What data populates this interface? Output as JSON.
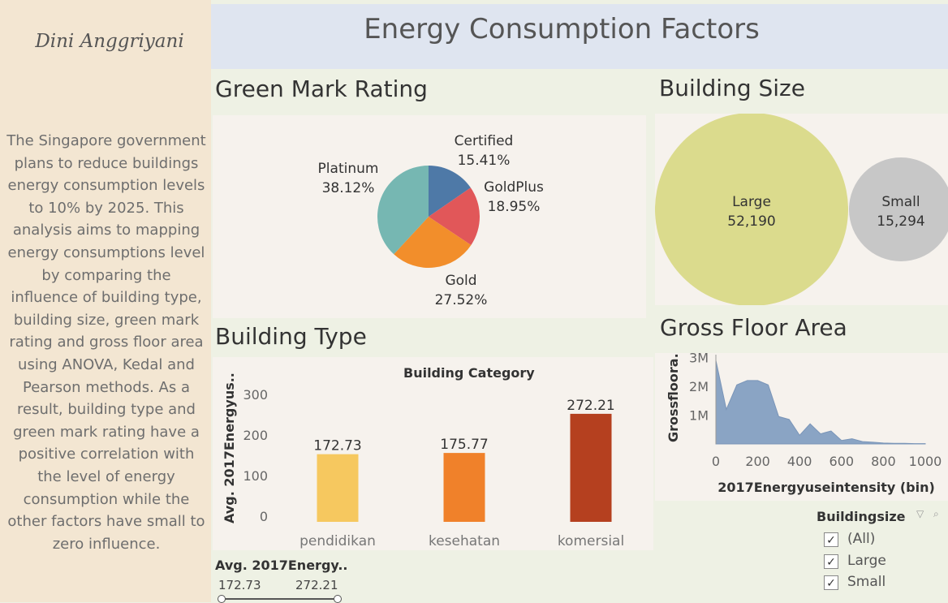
{
  "author": "Dini Anggriyani",
  "description": "The Singapore government plans to reduce buildings energy consumption levels  to 10% by 2025. This analysis aims to mapping energy consumptions level by comparing the influence of building type, building size, green mark rating and gross floor area using ANOVA, Kedal and Pearson methods. As a result, building type and green mark rating have a positive correlation with the level of energy consumption while the other factors have small to zero influence.",
  "dashboard_title": "Energy Consumption Factors",
  "sections": {
    "green_mark": "Green Mark Rating",
    "building_size": "Building Size",
    "building_type": "Building Type",
    "gross_floor_area": "Gross Floor Area"
  },
  "colors": {
    "Certified": "#4e79a7",
    "GoldPlus": "#e15759",
    "Gold": "#f28e2b",
    "Platinum": "#76b7b2",
    "Large": "#dbdb8d",
    "Small": "#c7c7c7",
    "pendidikan": "#f6c85f",
    "kesehatan": "#f0812a",
    "komersial": "#b5401f",
    "area": "#8aa4c4"
  },
  "chart_data": [
    {
      "type": "pie",
      "title": "Green Mark Rating",
      "slices": [
        {
          "label": "Certified",
          "value": 15.41,
          "value_label": "15.41%"
        },
        {
          "label": "GoldPlus",
          "value": 18.95,
          "value_label": "18.95%"
        },
        {
          "label": "Gold",
          "value": 27.52,
          "value_label": "27.52%"
        },
        {
          "label": "Platinum",
          "value": 38.12,
          "value_label": "38.12%"
        }
      ]
    },
    {
      "type": "bubble",
      "title": "Building Size",
      "items": [
        {
          "label": "Large",
          "value": 52190,
          "value_label": "52,190"
        },
        {
          "label": "Small",
          "value": 15294,
          "value_label": "15,294"
        }
      ]
    },
    {
      "type": "bar",
      "title": "Building Type",
      "header": "Building Category",
      "ylabel": "Avg. 2017Energyus..",
      "categories": [
        "pendidikan",
        "kesehatan",
        "komersial"
      ],
      "values": [
        172.73,
        175.77,
        272.21
      ],
      "value_labels": [
        "172.73",
        "175.77",
        "272.21"
      ],
      "yticks": [
        "0",
        "100",
        "200",
        "300"
      ],
      "ylim": [
        0,
        300
      ]
    },
    {
      "type": "area",
      "title": "Gross Floor Area",
      "xlabel": "2017Energyuseintensity (bin)",
      "ylabel": "Grossfloora..",
      "x": [
        0,
        50,
        100,
        150,
        200,
        250,
        300,
        350,
        400,
        450,
        500,
        550,
        600,
        650,
        700,
        750,
        800,
        850,
        900,
        950,
        1000
      ],
      "y": [
        2900000,
        1200000,
        2050000,
        2200000,
        2200000,
        2050000,
        950000,
        850000,
        300000,
        700000,
        350000,
        450000,
        120000,
        180000,
        80000,
        60000,
        30000,
        20000,
        20000,
        10000,
        10000
      ],
      "xticks": [
        "0",
        "200",
        "400",
        "600",
        "800",
        "1000"
      ],
      "xlim": [
        0,
        1000
      ],
      "yticks": [
        "1M",
        "2M",
        "3M"
      ],
      "ylim": [
        0,
        3100000
      ]
    }
  ],
  "filters": {
    "slider": {
      "title": "Avg. 2017Energy..",
      "min": "172.73",
      "max": "272.21"
    },
    "buildingsize": {
      "title": "Buildingsize",
      "options": [
        "(All)",
        "Large",
        "Small"
      ],
      "check": "✓"
    }
  }
}
